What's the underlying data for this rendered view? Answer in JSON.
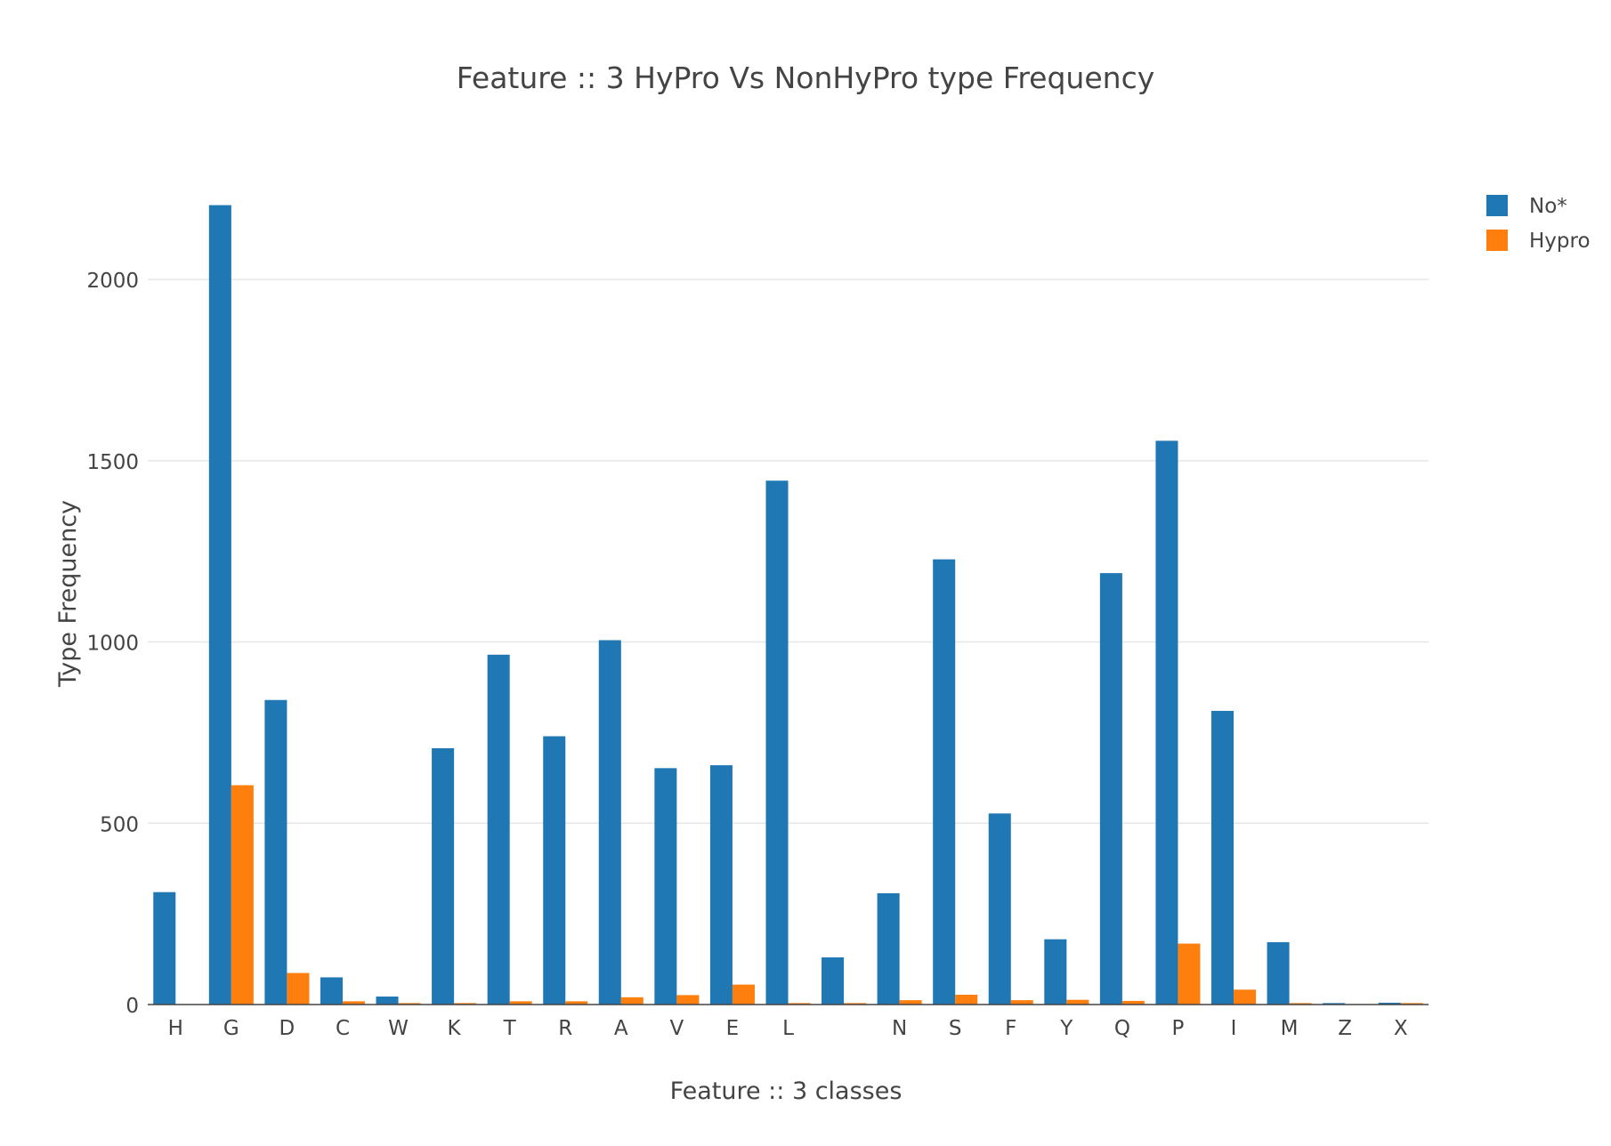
{
  "chart_data": {
    "type": "bar",
    "title": "Feature :: 3 HyPro Vs NonHyPro type Frequency",
    "xlabel": "Feature :: 3 classes",
    "ylabel": "Type Frequency",
    "categories": [
      "H",
      "G",
      "D",
      "C",
      "W",
      "K",
      "T",
      "R",
      "A",
      "V",
      "E",
      "L",
      "",
      "N",
      "S",
      "F",
      "Y",
      "Q",
      "P",
      "I",
      "M",
      "Z",
      "X"
    ],
    "series": [
      {
        "name": "No*",
        "color": "#1f77b4",
        "values": [
          310,
          2205,
          840,
          75,
          22,
          707,
          965,
          740,
          1005,
          652,
          660,
          1445,
          130,
          307,
          1228,
          527,
          180,
          1190,
          1555,
          810,
          172,
          4,
          5
        ]
      },
      {
        "name": "Hypro",
        "color": "#ff7f0e",
        "values": [
          0,
          605,
          87,
          9,
          4,
          4,
          9,
          9,
          20,
          26,
          55,
          4,
          4,
          12,
          27,
          12,
          13,
          10,
          168,
          41,
          4,
          0,
          4
        ]
      }
    ],
    "ylim": [
      0,
      2280
    ],
    "yticks": [
      0,
      500,
      1000,
      1500,
      2000
    ],
    "grid": true,
    "legend_position": "top-right"
  }
}
